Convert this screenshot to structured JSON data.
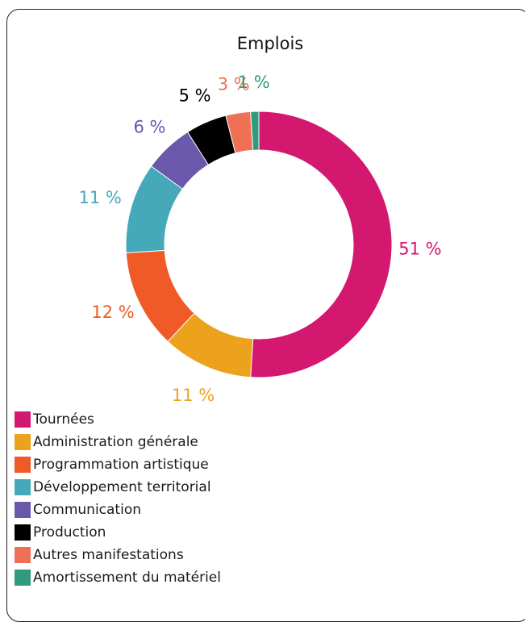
{
  "chart_data": {
    "type": "pie",
    "title": "Emplois",
    "categories": [
      "Tournées",
      "Administration générale",
      "Programmation artistique",
      "Développement territorial",
      "Communication",
      "Production",
      "Autres manifestations",
      "Amortissement du matériel"
    ],
    "values": [
      51,
      11,
      12,
      11,
      6,
      5,
      3,
      1
    ],
    "labels": [
      "51 %",
      "11 %",
      "12 %",
      "11 %",
      "6 %",
      "5 %",
      "3 %",
      "1 %"
    ],
    "colors": [
      "#d4176f",
      "#eca21d",
      "#ef5a27",
      "#45a9ba",
      "#6a58aa",
      "#000000",
      "#f07055",
      "#2f9a7e"
    ],
    "donut": true,
    "legend_position": "bottom-left"
  }
}
